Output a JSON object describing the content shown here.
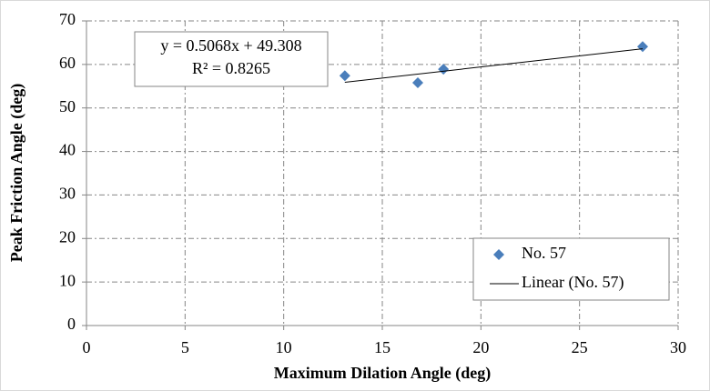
{
  "chart_data": {
    "type": "scatter",
    "xlabel": "Maximum Dilation Angle (deg)",
    "ylabel": "Peak Friction Angle (deg)",
    "annotations": [
      "y = 0.5068x + 49.308",
      "R² = 0.8265"
    ],
    "series": [
      {
        "name": "No. 57",
        "type": "scatter",
        "color": "#4a7ebb",
        "x": [
          13.1,
          16.8,
          18.1,
          28.2
        ],
        "values": [
          57.4,
          55.8,
          58.9,
          64.1
        ]
      },
      {
        "name": "Linear (No. 57)",
        "type": "line",
        "color": "#000000",
        "x": [
          13.1,
          28.2
        ],
        "values": [
          55.9,
          63.6
        ]
      }
    ],
    "xlim": [
      0,
      30
    ],
    "xticks": [
      0,
      5,
      10,
      15,
      20,
      25,
      30
    ],
    "ylim": [
      0,
      70
    ],
    "yticks": [
      0,
      10,
      20,
      30,
      40,
      50,
      60,
      70
    ],
    "grid": true,
    "legend": "lower right"
  }
}
